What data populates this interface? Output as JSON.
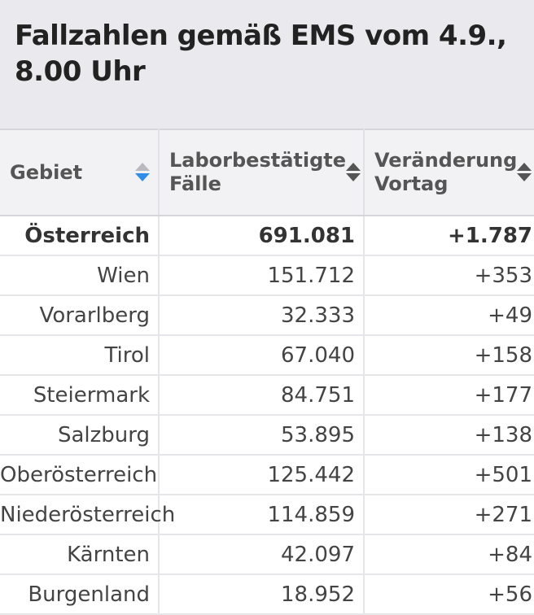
{
  "title_line1": "Fallzahlen gemäß EMS vom 4.9.,",
  "title_line2": "8.00 Uhr",
  "columns": [
    {
      "line1": "Gebiet",
      "line2": ""
    },
    {
      "line1": "Laborbestätigte",
      "line2": "Fälle"
    },
    {
      "line1": "Veränderung",
      "line2": "Vortag"
    }
  ],
  "sort_active_color": "#2f8fe8",
  "rows": [
    {
      "gebiet": "Österreich",
      "faelle": "691.081",
      "veraenderung": "+1.787"
    },
    {
      "gebiet": "Wien",
      "faelle": "151.712",
      "veraenderung": "+353"
    },
    {
      "gebiet": "Vorarlberg",
      "faelle": "32.333",
      "veraenderung": "+49"
    },
    {
      "gebiet": "Tirol",
      "faelle": "67.040",
      "veraenderung": "+158"
    },
    {
      "gebiet": "Steiermark",
      "faelle": "84.751",
      "veraenderung": "+177"
    },
    {
      "gebiet": "Salzburg",
      "faelle": "53.895",
      "veraenderung": "+138"
    },
    {
      "gebiet": "Oberösterreich",
      "faelle": "125.442",
      "veraenderung": "+501"
    },
    {
      "gebiet": "Niederösterreich",
      "faelle": "114.859",
      "veraenderung": "+271"
    },
    {
      "gebiet": "Kärnten",
      "faelle": "42.097",
      "veraenderung": "+84"
    },
    {
      "gebiet": "Burgenland",
      "faelle": "18.952",
      "veraenderung": "+56"
    }
  ]
}
